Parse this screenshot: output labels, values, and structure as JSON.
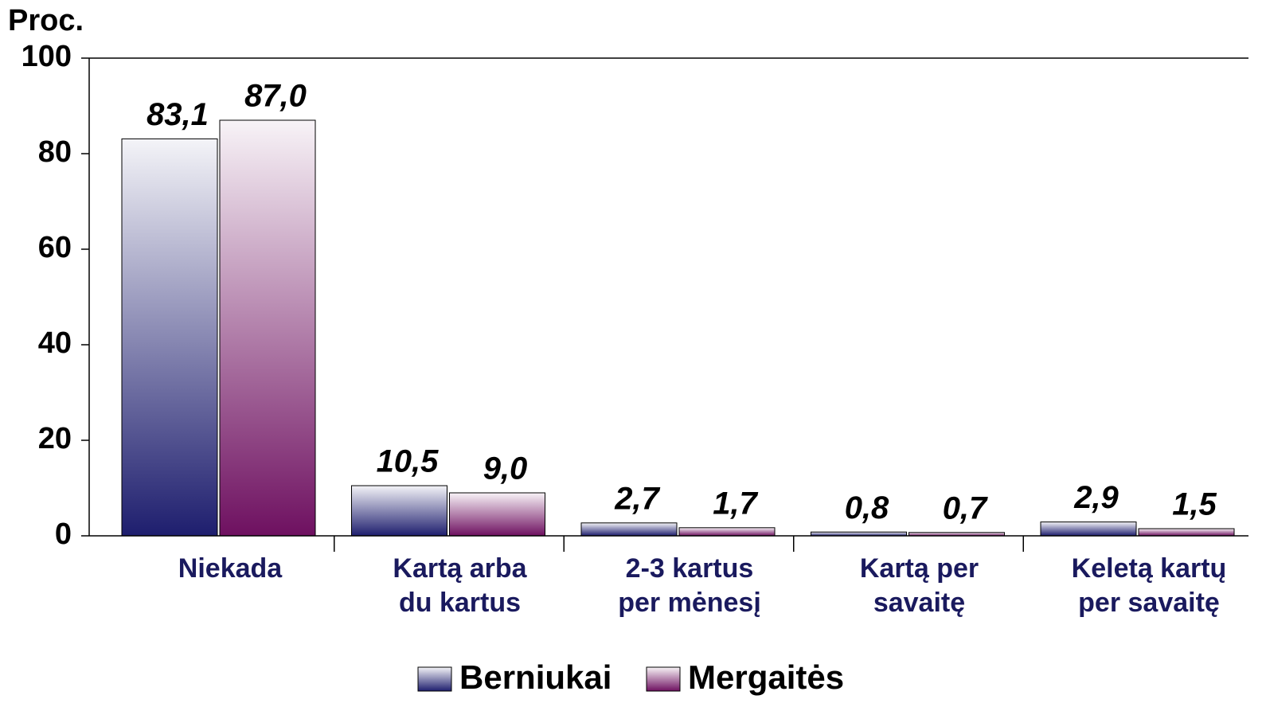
{
  "chart_data": {
    "type": "bar",
    "y_label": "Proc.",
    "categories": [
      [
        "Niekada"
      ],
      [
        "Kartą arba",
        "du kartus"
      ],
      [
        "2-3 kartus",
        "per mėnesį"
      ],
      [
        "Kartą per",
        "savaitę"
      ],
      [
        "Keletą kartų",
        "per savaitę"
      ]
    ],
    "series": [
      {
        "name": "Berniukai",
        "color": "#1e1e6e",
        "values": [
          83.1,
          10.5,
          2.7,
          0.8,
          2.9
        ],
        "value_labels": [
          "83,1",
          "10,5",
          "2,7",
          "0,8",
          "2,9"
        ]
      },
      {
        "name": "Mergaitės",
        "color": "#6e1060",
        "values": [
          87.0,
          9.0,
          1.7,
          0.7,
          1.5
        ],
        "value_labels": [
          "87,0",
          "9,0",
          "1,7",
          "0,7",
          "1,5"
        ]
      }
    ],
    "ylim": [
      0,
      100
    ],
    "yticks": [
      0,
      20,
      40,
      60,
      80,
      100
    ]
  }
}
